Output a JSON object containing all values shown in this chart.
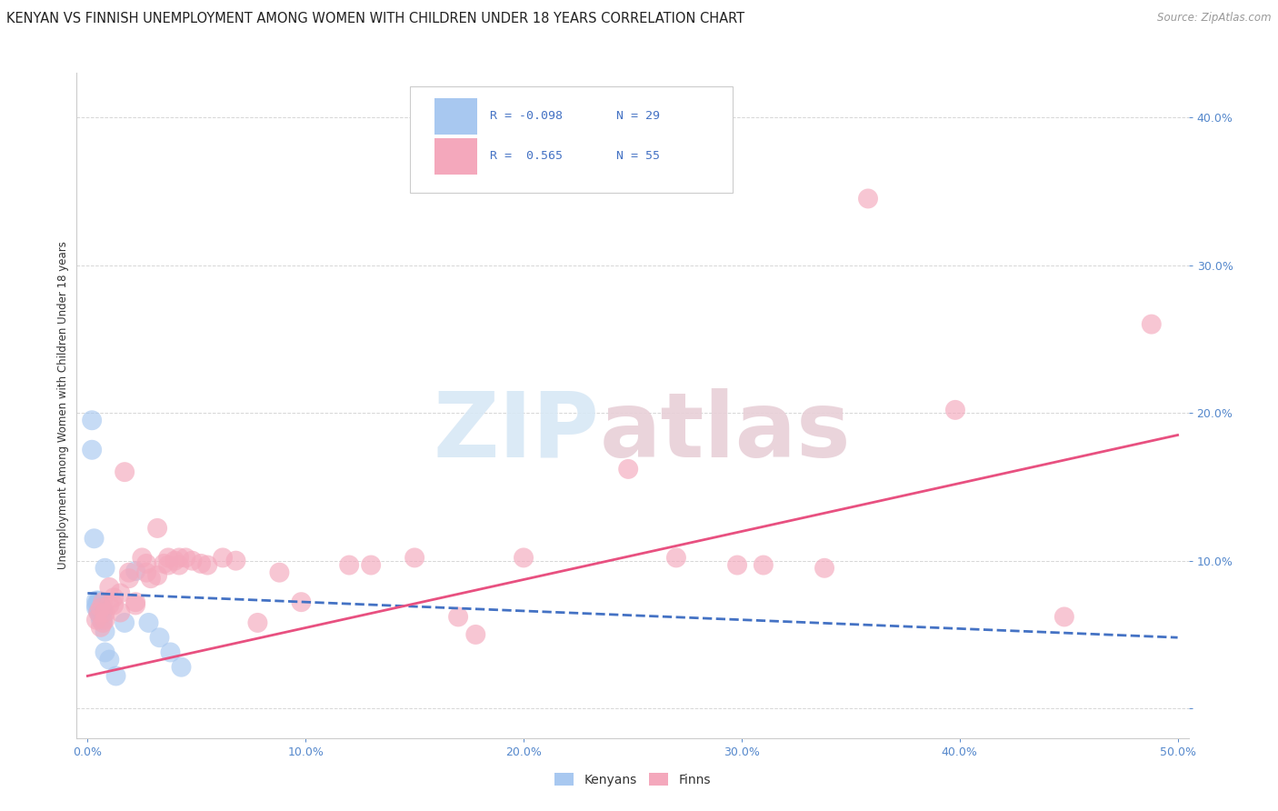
{
  "title": "KENYAN VS FINNISH UNEMPLOYMENT AMONG WOMEN WITH CHILDREN UNDER 18 YEARS CORRELATION CHART",
  "source": "Source: ZipAtlas.com",
  "ylabel": "Unemployment Among Women with Children Under 18 years",
  "x_ticks": [
    0.0,
    0.1,
    0.2,
    0.3,
    0.4,
    0.5
  ],
  "x_tick_labels": [
    "0.0%",
    "10.0%",
    "20.0%",
    "30.0%",
    "40.0%",
    "50.0%"
  ],
  "y_ticks": [
    0.0,
    0.1,
    0.2,
    0.3,
    0.4
  ],
  "y_tick_labels": [
    "",
    "10.0%",
    "20.0%",
    "30.0%",
    "40.0%"
  ],
  "xlim": [
    -0.005,
    0.505
  ],
  "ylim": [
    -0.02,
    0.43
  ],
  "legend_R_blue": "R = -0.098",
  "legend_N_blue": "N = 29",
  "legend_R_pink": "R =  0.565",
  "legend_N_pink": "N = 55",
  "watermark_zip": "ZIP",
  "watermark_atlas": "atlas",
  "blue_color": "#A8C8F0",
  "pink_color": "#F4A8BC",
  "blue_line_color": "#4472C4",
  "pink_line_color": "#E85080",
  "blue_scatter": [
    [
      0.002,
      0.195
    ],
    [
      0.002,
      0.175
    ],
    [
      0.003,
      0.115
    ],
    [
      0.004,
      0.073
    ],
    [
      0.004,
      0.07
    ],
    [
      0.004,
      0.068
    ],
    [
      0.005,
      0.073
    ],
    [
      0.005,
      0.07
    ],
    [
      0.005,
      0.067
    ],
    [
      0.005,
      0.072
    ],
    [
      0.005,
      0.065
    ],
    [
      0.006,
      0.07
    ],
    [
      0.006,
      0.065
    ],
    [
      0.006,
      0.062
    ],
    [
      0.006,
      0.068
    ],
    [
      0.006,
      0.06
    ],
    [
      0.007,
      0.066
    ],
    [
      0.007,
      0.06
    ],
    [
      0.008,
      0.095
    ],
    [
      0.008,
      0.052
    ],
    [
      0.008,
      0.038
    ],
    [
      0.01,
      0.033
    ],
    [
      0.013,
      0.022
    ],
    [
      0.017,
      0.058
    ],
    [
      0.022,
      0.093
    ],
    [
      0.028,
      0.058
    ],
    [
      0.033,
      0.048
    ],
    [
      0.038,
      0.038
    ],
    [
      0.043,
      0.028
    ]
  ],
  "pink_scatter": [
    [
      0.004,
      0.06
    ],
    [
      0.005,
      0.065
    ],
    [
      0.006,
      0.068
    ],
    [
      0.006,
      0.055
    ],
    [
      0.007,
      0.072
    ],
    [
      0.007,
      0.058
    ],
    [
      0.008,
      0.06
    ],
    [
      0.008,
      0.065
    ],
    [
      0.01,
      0.082
    ],
    [
      0.01,
      0.07
    ],
    [
      0.012,
      0.07
    ],
    [
      0.012,
      0.075
    ],
    [
      0.015,
      0.078
    ],
    [
      0.015,
      0.065
    ],
    [
      0.017,
      0.16
    ],
    [
      0.019,
      0.092
    ],
    [
      0.019,
      0.088
    ],
    [
      0.022,
      0.072
    ],
    [
      0.022,
      0.07
    ],
    [
      0.025,
      0.102
    ],
    [
      0.027,
      0.098
    ],
    [
      0.027,
      0.092
    ],
    [
      0.029,
      0.088
    ],
    [
      0.032,
      0.122
    ],
    [
      0.032,
      0.09
    ],
    [
      0.035,
      0.098
    ],
    [
      0.037,
      0.102
    ],
    [
      0.037,
      0.097
    ],
    [
      0.04,
      0.1
    ],
    [
      0.042,
      0.102
    ],
    [
      0.042,
      0.097
    ],
    [
      0.045,
      0.102
    ],
    [
      0.048,
      0.1
    ],
    [
      0.052,
      0.098
    ],
    [
      0.055,
      0.097
    ],
    [
      0.062,
      0.102
    ],
    [
      0.068,
      0.1
    ],
    [
      0.078,
      0.058
    ],
    [
      0.088,
      0.092
    ],
    [
      0.098,
      0.072
    ],
    [
      0.12,
      0.097
    ],
    [
      0.13,
      0.097
    ],
    [
      0.15,
      0.102
    ],
    [
      0.17,
      0.062
    ],
    [
      0.178,
      0.05
    ],
    [
      0.2,
      0.102
    ],
    [
      0.248,
      0.162
    ],
    [
      0.27,
      0.102
    ],
    [
      0.298,
      0.097
    ],
    [
      0.31,
      0.097
    ],
    [
      0.338,
      0.095
    ],
    [
      0.358,
      0.345
    ],
    [
      0.398,
      0.202
    ],
    [
      0.448,
      0.062
    ],
    [
      0.488,
      0.26
    ]
  ],
  "background_color": "#FFFFFF",
  "grid_color": "#CCCCCC",
  "title_fontsize": 10.5,
  "axis_label_fontsize": 8.5,
  "tick_fontsize": 9,
  "tick_color_y": "#5588CC",
  "tick_color_x": "#5588CC"
}
